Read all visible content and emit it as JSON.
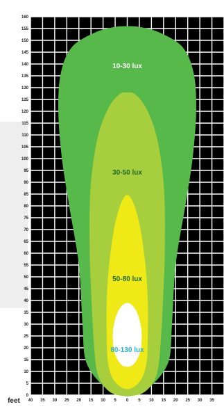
{
  "chart_data": {
    "type": "area",
    "title": "",
    "xlabel": "feet",
    "ylabel": "",
    "xlim": [
      -40,
      40
    ],
    "ylim": [
      0,
      160
    ],
    "x_ticks": [
      "40",
      "35",
      "30",
      "25",
      "20",
      "15",
      "10",
      "5",
      "0",
      "5",
      "10",
      "15",
      "20",
      "25",
      "30",
      "35"
    ],
    "y_ticks": [
      0,
      5,
      10,
      15,
      20,
      25,
      30,
      35,
      40,
      45,
      50,
      55,
      60,
      65,
      70,
      75,
      80,
      85,
      90,
      95,
      100,
      105,
      110,
      115,
      120,
      125,
      130,
      135,
      140,
      145,
      150,
      155,
      160
    ],
    "grid": true,
    "background": "#000000",
    "grid_color": "#ffffff",
    "zones": [
      {
        "name": "10-30 lux",
        "color": "#56b949",
        "label_color": "#ffffff",
        "label_position": [
          0,
          139
        ],
        "outline": [
          [
            -3,
            0
          ],
          [
            -10,
            4
          ],
          [
            -17,
            14
          ],
          [
            -18.5,
            30
          ],
          [
            -20,
            55
          ],
          [
            -24,
            80
          ],
          [
            -27,
            100
          ],
          [
            -28.5,
            120
          ],
          [
            -27.5,
            136
          ],
          [
            -23,
            147
          ],
          [
            -14,
            153
          ],
          [
            -6,
            155.5
          ],
          [
            0,
            156
          ],
          [
            6,
            155.5
          ],
          [
            14,
            153
          ],
          [
            23,
            147
          ],
          [
            27.5,
            136
          ],
          [
            28.5,
            120
          ],
          [
            27,
            100
          ],
          [
            24,
            80
          ],
          [
            20,
            55
          ],
          [
            18.5,
            30
          ],
          [
            17,
            14
          ],
          [
            10,
            4
          ],
          [
            3,
            0
          ]
        ]
      },
      {
        "name": "30-50 lux",
        "color": "#a7cf3d",
        "label_color": "#1e6b22",
        "label_position": [
          0,
          94
        ],
        "outline": [
          [
            -4,
            0
          ],
          [
            -9,
            3
          ],
          [
            -12.5,
            10
          ],
          [
            -14,
            25
          ],
          [
            -15,
            45
          ],
          [
            -15.5,
            60
          ],
          [
            -15.5,
            80
          ],
          [
            -14.5,
            95
          ],
          [
            -12,
            110
          ],
          [
            -8,
            121
          ],
          [
            -3.5,
            127
          ],
          [
            0,
            128
          ],
          [
            3.5,
            127
          ],
          [
            8,
            121
          ],
          [
            12,
            110
          ],
          [
            14.5,
            95
          ],
          [
            15.5,
            80
          ],
          [
            15.5,
            60
          ],
          [
            15,
            45
          ],
          [
            14,
            25
          ],
          [
            12.5,
            10
          ],
          [
            9,
            3
          ],
          [
            4,
            0
          ]
        ]
      },
      {
        "name": "50-80 lux",
        "color": "#eee917",
        "label_color": "#1e6b22",
        "label_position": [
          0,
          49
        ],
        "outline": [
          [
            -2,
            3
          ],
          [
            -6,
            7
          ],
          [
            -8,
            14
          ],
          [
            -8.5,
            25
          ],
          [
            -8.5,
            40
          ],
          [
            -7.5,
            55
          ],
          [
            -5.5,
            70
          ],
          [
            -3,
            80
          ],
          [
            -1,
            84
          ],
          [
            0,
            84.5
          ],
          [
            1,
            84
          ],
          [
            3,
            80
          ],
          [
            5.5,
            70
          ],
          [
            7.5,
            55
          ],
          [
            8.5,
            40
          ],
          [
            8.5,
            25
          ],
          [
            8,
            14
          ],
          [
            6,
            7
          ],
          [
            2,
            3
          ]
        ]
      },
      {
        "name": "80-130 lux",
        "color": "#ffffff",
        "label_color": "#2ab3c9",
        "label_position": [
          0,
          19
        ],
        "outline": [
          [
            0,
            12
          ],
          [
            -2,
            12.5
          ],
          [
            -4,
            15
          ],
          [
            -5.5,
            19
          ],
          [
            -6,
            25
          ],
          [
            -5.5,
            30
          ],
          [
            -4,
            35
          ],
          [
            -2,
            38
          ],
          [
            0,
            39
          ],
          [
            2,
            38
          ],
          [
            4,
            35
          ],
          [
            5.5,
            30
          ],
          [
            6,
            25
          ],
          [
            5.5,
            19
          ],
          [
            4,
            15
          ],
          [
            2,
            12.5
          ]
        ]
      }
    ]
  }
}
